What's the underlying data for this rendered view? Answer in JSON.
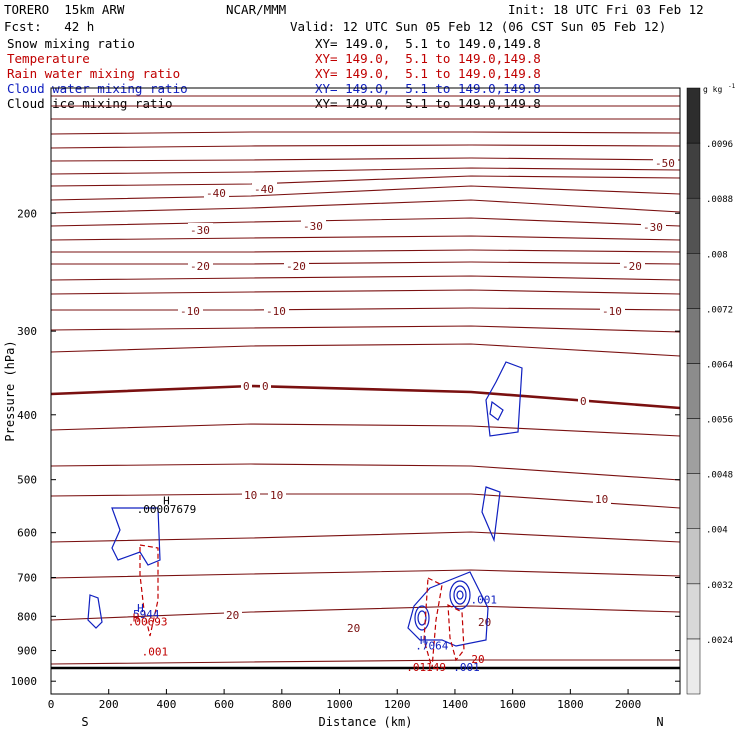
{
  "header": {
    "model": "TORERO  15km ARW",
    "org": "NCAR/MMM",
    "init": "Init: 18 UTC Fri 03 Feb 12",
    "fcst": "Fcst:   42 h",
    "valid": "Valid: 12 UTC Sun 05 Feb 12 (06 CST Sun 05 Feb 12)"
  },
  "fields": [
    {
      "label": "Snow mixing ratio",
      "coords": "XY= 149.0,  5.1 to 149.0,149.8",
      "color": "#000000"
    },
    {
      "label": "Temperature",
      "coords": "XY= 149.0,  5.1 to 149.0,149.8",
      "color": "#c00000"
    },
    {
      "label": "Rain water mixing ratio",
      "coords": "XY= 149.0,  5.1 to 149.0,149.8",
      "color": "#c00000"
    },
    {
      "label": "Cloud water mixing ratio",
      "coords": "XY= 149.0,  5.1 to 149.0,149.8",
      "color": "#1020c0"
    },
    {
      "label": "Cloud ice mixing ratio",
      "coords": "XY= 149.0,  5.1 to 149.0,149.8",
      "color": "#000000"
    }
  ],
  "chart_data": {
    "type": "contour",
    "xlabel": "Distance (km)",
    "ylabel": "Pressure (hPa)",
    "xlim": [
      0,
      2180
    ],
    "ylim_log_pressure": [
      130,
      1045
    ],
    "x_ticks": [
      0,
      200,
      400,
      600,
      800,
      1000,
      1200,
      1400,
      1600,
      1800,
      2000
    ],
    "y_ticks": [
      200,
      300,
      400,
      500,
      600,
      700,
      800,
      900,
      1000
    ],
    "end_labels": {
      "left": "S",
      "right": "N"
    },
    "colorbar": {
      "unit": "g kg",
      "unit_exp": "-1",
      "ticks": [
        ".0024",
        ".0032",
        ".004",
        ".0048",
        ".0056",
        ".0064",
        ".0072",
        ".008",
        ".0088",
        ".0096"
      ]
    },
    "temperature_contours_label_values": [
      "-50",
      "-40",
      "-40",
      "-30",
      "-30",
      "-30",
      "-20",
      "-20",
      "-20",
      "-10",
      "-10",
      "-10",
      "0",
      "0",
      "0",
      "10",
      "10",
      "10",
      "20",
      "20",
      "20"
    ],
    "annotations": [
      {
        "text": "H",
        "x": 400,
        "p": 545,
        "color": "#000000"
      },
      {
        "text": ".00007679",
        "x": 400,
        "p": 561,
        "color": "#000000"
      },
      {
        "text": "H",
        "x": 310,
        "p": 788,
        "color": "#1020c0"
      },
      {
        "text": "5944",
        "x": 330,
        "p": 805,
        "color": "#1020c0"
      },
      {
        "text": "H",
        "x": 295,
        "p": 815,
        "color": "#c00000"
      },
      {
        "text": ".00693",
        "x": 335,
        "p": 825,
        "color": "#c00000"
      },
      {
        "text": ".001",
        "x": 360,
        "p": 915,
        "color": "#c00000"
      },
      {
        "text": ".001",
        "x": 1500,
        "p": 765,
        "color": "#1020c0"
      },
      {
        "text": "H",
        "x": 1290,
        "p": 880,
        "color": "#1020c0"
      },
      {
        "text": ".7064",
        "x": 1320,
        "p": 897,
        "color": "#1020c0"
      },
      {
        "text": ".01149",
        "x": 1300,
        "p": 965,
        "color": "#c00000"
      },
      {
        "text": ".001",
        "x": 1440,
        "p": 965,
        "color": "#1020c0"
      },
      {
        "text": "20",
        "x": 1480,
        "p": 940,
        "color": "#c00000"
      }
    ]
  }
}
